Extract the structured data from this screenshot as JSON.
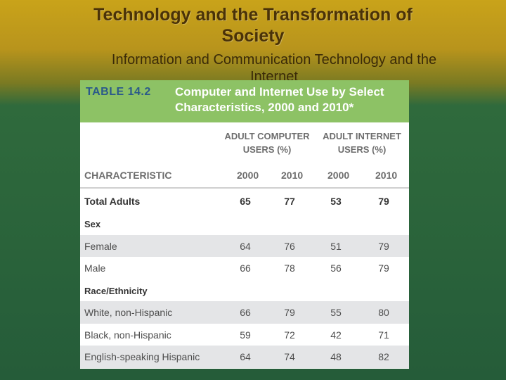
{
  "slide": {
    "title_line1": "Technology and the Transformation of",
    "title_line2": "Society",
    "subtitle_line1": "Information and Communication Technology and the",
    "subtitle_line2": "Internet"
  },
  "table": {
    "number": "TABLE 14.2",
    "caption_line1": "Computer and Internet Use by Select",
    "caption_line2": "Characteristics, 2000 and 2010*",
    "group_computer_line1": "ADULT COMPUTER",
    "group_computer_line2": "USERS (%)",
    "group_internet_line1": "ADULT INTERNET",
    "group_internet_line2": "USERS (%)",
    "columns": [
      "CHARACTERISTIC",
      "2000",
      "2010",
      "2000",
      "2010"
    ],
    "total": {
      "label": "Total Adults",
      "values": [
        "65",
        "77",
        "53",
        "79"
      ]
    },
    "section_sex": "Sex",
    "sex_rows": [
      {
        "label": "Female",
        "values": [
          "64",
          "76",
          "51",
          "79"
        ]
      },
      {
        "label": "Male",
        "values": [
          "66",
          "78",
          "56",
          "79"
        ]
      }
    ],
    "section_race": "Race/Ethnicity",
    "race_rows": [
      {
        "label": "White, non-Hispanic",
        "values": [
          "66",
          "79",
          "55",
          "80"
        ]
      },
      {
        "label": "Black, non-Hispanic",
        "values": [
          "59",
          "72",
          "42",
          "71"
        ]
      },
      {
        "label": "English-speaking Hispanic",
        "values": [
          "64",
          "74",
          "48",
          "82"
        ]
      }
    ]
  }
}
